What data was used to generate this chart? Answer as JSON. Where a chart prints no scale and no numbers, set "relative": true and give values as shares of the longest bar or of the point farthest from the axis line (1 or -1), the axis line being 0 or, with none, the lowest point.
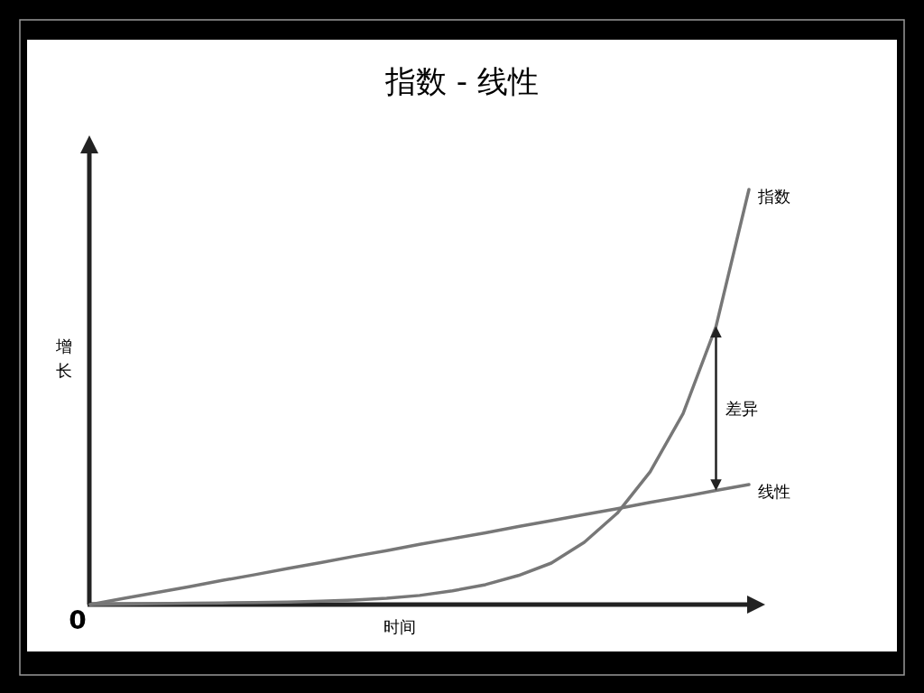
{
  "chart_data": {
    "type": "line",
    "title": "指数 - 线性",
    "xlabel": "时间",
    "ylabel": "增长",
    "relative": true,
    "categories": [
      null,
      null,
      null,
      null,
      null,
      null,
      null,
      null,
      null,
      null,
      null,
      null,
      null,
      null,
      null,
      null,
      null,
      null,
      null,
      null,
      null
    ],
    "series": [
      {
        "name": "指数",
        "color": "#777777",
        "values": [
          0,
          0.001,
          0.002,
          0.003,
          0.004,
          0.005,
          0.006,
          0.008,
          0.011,
          0.015,
          0.022,
          0.033,
          0.048,
          0.07,
          0.1,
          0.15,
          0.22,
          0.32,
          0.46,
          0.67,
          1.0
        ]
      },
      {
        "name": "线性",
        "color": "#777777",
        "values": [
          0,
          0.0145,
          0.029,
          0.043,
          0.058,
          0.072,
          0.087,
          0.101,
          0.116,
          0.13,
          0.145,
          0.159,
          0.173,
          0.188,
          0.202,
          0.217,
          0.231,
          0.246,
          0.26,
          0.275,
          0.289
        ]
      }
    ],
    "annotations": [
      "差异",
      "0"
    ]
  }
}
